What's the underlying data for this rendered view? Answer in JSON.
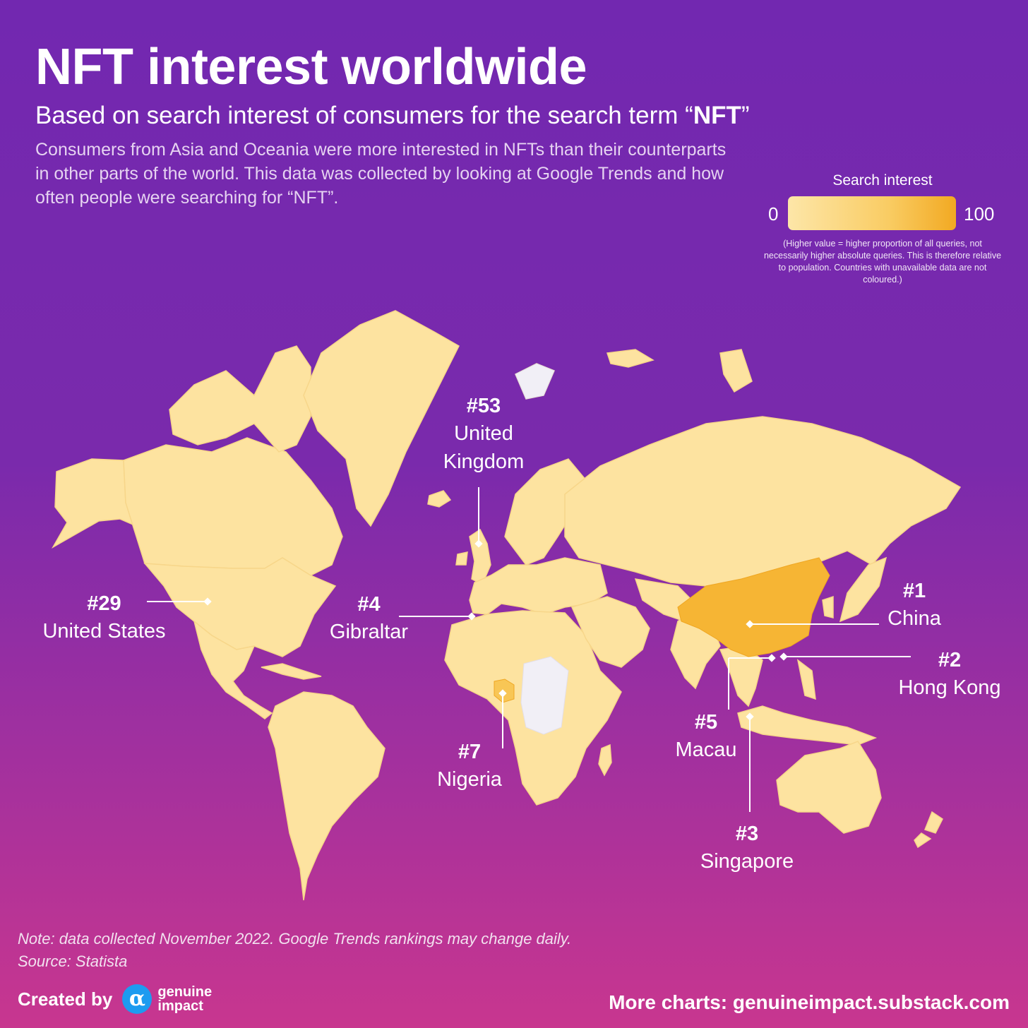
{
  "header": {
    "title": "NFT interest worldwide",
    "subtitle_prefix": "Based on search interest of consumers for the search term “",
    "subtitle_term": "NFT",
    "subtitle_suffix": "”",
    "description": "Consumers from Asia and Oceania were more interested in NFTs than their counterparts in other parts of the world. This data was collected by looking at Google Trends and how often people were searching for “NFT”."
  },
  "legend": {
    "title": "Search interest",
    "min_label": "0",
    "max_label": "100",
    "note": "(Higher value = higher proportion of all queries, not necessarily higher absolute queries. This is therefore relative to population. Countries with unavailable data are not coloured.)",
    "colors": {
      "low": "#fde6a8",
      "high": "#f2a922",
      "no_data": "#f1eff6"
    }
  },
  "highlights": [
    {
      "rank": "#1",
      "country": "China"
    },
    {
      "rank": "#2",
      "country": "Hong Kong"
    },
    {
      "rank": "#3",
      "country": "Singapore"
    },
    {
      "rank": "#4",
      "country": "Gibraltar"
    },
    {
      "rank": "#5",
      "country": "Macau"
    },
    {
      "rank": "#7",
      "country": "Nigeria"
    },
    {
      "rank": "#29",
      "country": "United States"
    },
    {
      "rank": "#53",
      "country_line1": "United",
      "country_line2": "Kingdom"
    }
  ],
  "footer": {
    "note": "Note: data collected November 2022. Google Trends rankings may change daily.",
    "source": "Source: Statista",
    "created_by": "Created by",
    "logo_line1": "genuine",
    "logo_line2": "impact",
    "more": "More charts: genuineimpact.substack.com"
  }
}
